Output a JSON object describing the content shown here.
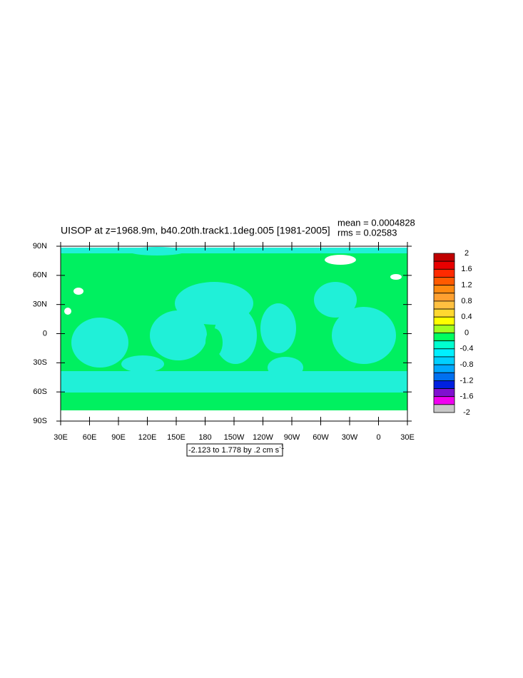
{
  "title": "UISOP at z=1968.9m, b40.20th.track1.1deg.005 [1981-2005]",
  "stats": {
    "mean": "mean = 0.0004828",
    "rms": "rms = 0.02583"
  },
  "map": {
    "xlim": [
      30,
      390
    ],
    "ylim": [
      -90,
      90
    ],
    "xticks": [
      {
        "value": 30,
        "label": "30E"
      },
      {
        "value": 60,
        "label": "60E"
      },
      {
        "value": 90,
        "label": "90E"
      },
      {
        "value": 120,
        "label": "120E"
      },
      {
        "value": 150,
        "label": "150E"
      },
      {
        "value": 180,
        "label": "180"
      },
      {
        "value": 210,
        "label": "150W"
      },
      {
        "value": 240,
        "label": "120W"
      },
      {
        "value": 270,
        "label": "90W"
      },
      {
        "value": 300,
        "label": "60W"
      },
      {
        "value": 330,
        "label": "30W"
      },
      {
        "value": 360,
        "label": "0"
      },
      {
        "value": 390,
        "label": "30E"
      }
    ],
    "yticks": [
      {
        "value": 90,
        "label": "90N"
      },
      {
        "value": 60,
        "label": "60N"
      },
      {
        "value": 30,
        "label": "30N"
      },
      {
        "value": 0,
        "label": "0"
      },
      {
        "value": -30,
        "label": "30S"
      },
      {
        "value": -60,
        "label": "60S"
      },
      {
        "value": -90,
        "label": "90S"
      }
    ]
  },
  "colorbar": {
    "labels": [
      2,
      1.6,
      1.2,
      0.8,
      0.4,
      0,
      -0.4,
      -0.8,
      -1.2,
      -1.6,
      -2
    ],
    "colors": [
      "#c00000",
      "#e80000",
      "#ff2a00",
      "#ff5a00",
      "#ff8a10",
      "#ffa030",
      "#ffc040",
      "#ffd830",
      "#ffff00",
      "#a0ff20",
      "#00ff60",
      "#00ffd0",
      "#00f0ff",
      "#00d0ff",
      "#00a8ff",
      "#0070f0",
      "#0020e0",
      "#8010d0",
      "#f000f0",
      "#c8c8c8"
    ]
  },
  "info_label": {
    "text": "-2.123 to 1.778 by .2 cm s",
    "superscript": "-1"
  }
}
